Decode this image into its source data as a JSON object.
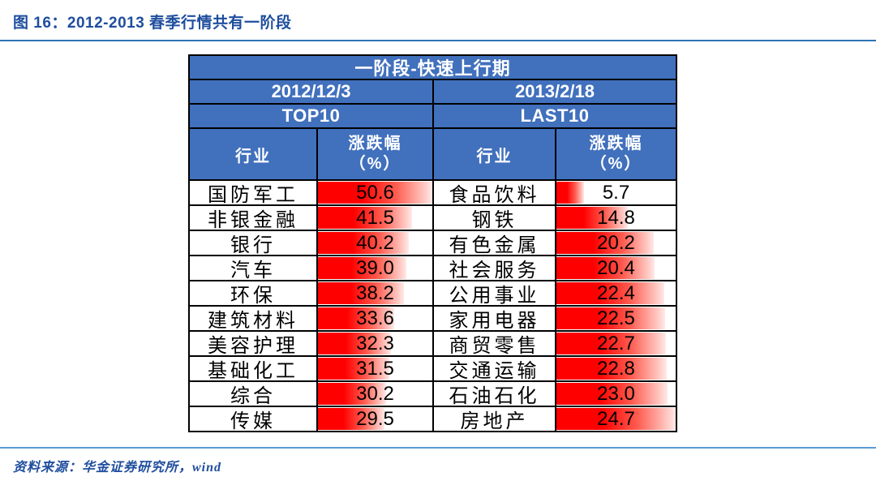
{
  "title": "图 16：2012-2013 春季行情共有一阶段",
  "source_note": "资料来源：华金证券研究所，wind",
  "labels": {
    "industry": "行业",
    "change_line1": "涨跌幅",
    "change_line2": "（%）"
  },
  "colors": {
    "header_blue": "#4170bd",
    "bar_red": "#ff0000",
    "title_blue": "#1f4e9e",
    "rule_blue": "#2e74b5"
  },
  "chart_data": {
    "type": "table",
    "title": "一阶段-快速上行期",
    "bar_style": "red gradient data bars, length scaled to each column's maximum value",
    "sections": [
      {
        "date": "2012/12/3",
        "group": "TOP10",
        "col_headers": [
          "行业",
          "涨跌幅（%）"
        ],
        "rows": [
          {
            "industry": "国防军工",
            "change_pct": 50.6
          },
          {
            "industry": "非银金融",
            "change_pct": 41.5
          },
          {
            "industry": "银行",
            "change_pct": 40.2
          },
          {
            "industry": "汽车",
            "change_pct": 39.0
          },
          {
            "industry": "环保",
            "change_pct": 38.2
          },
          {
            "industry": "建筑材料",
            "change_pct": 33.6
          },
          {
            "industry": "美容护理",
            "change_pct": 32.3
          },
          {
            "industry": "基础化工",
            "change_pct": 31.5
          },
          {
            "industry": "综合",
            "change_pct": 30.2
          },
          {
            "industry": "传媒",
            "change_pct": 29.5
          }
        ]
      },
      {
        "date": "2013/2/18",
        "group": "LAST10",
        "col_headers": [
          "行业",
          "涨跌幅（%）"
        ],
        "rows": [
          {
            "industry": "食品饮料",
            "change_pct": 5.7
          },
          {
            "industry": "钢铁",
            "change_pct": 14.8
          },
          {
            "industry": "有色金属",
            "change_pct": 20.2
          },
          {
            "industry": "社会服务",
            "change_pct": 20.4
          },
          {
            "industry": "公用事业",
            "change_pct": 22.4
          },
          {
            "industry": "家用电器",
            "change_pct": 22.5
          },
          {
            "industry": "商贸零售",
            "change_pct": 22.7
          },
          {
            "industry": "交通运输",
            "change_pct": 22.8
          },
          {
            "industry": "石油石化",
            "change_pct": 23.0
          },
          {
            "industry": "房地产",
            "change_pct": 24.7
          }
        ]
      }
    ]
  }
}
